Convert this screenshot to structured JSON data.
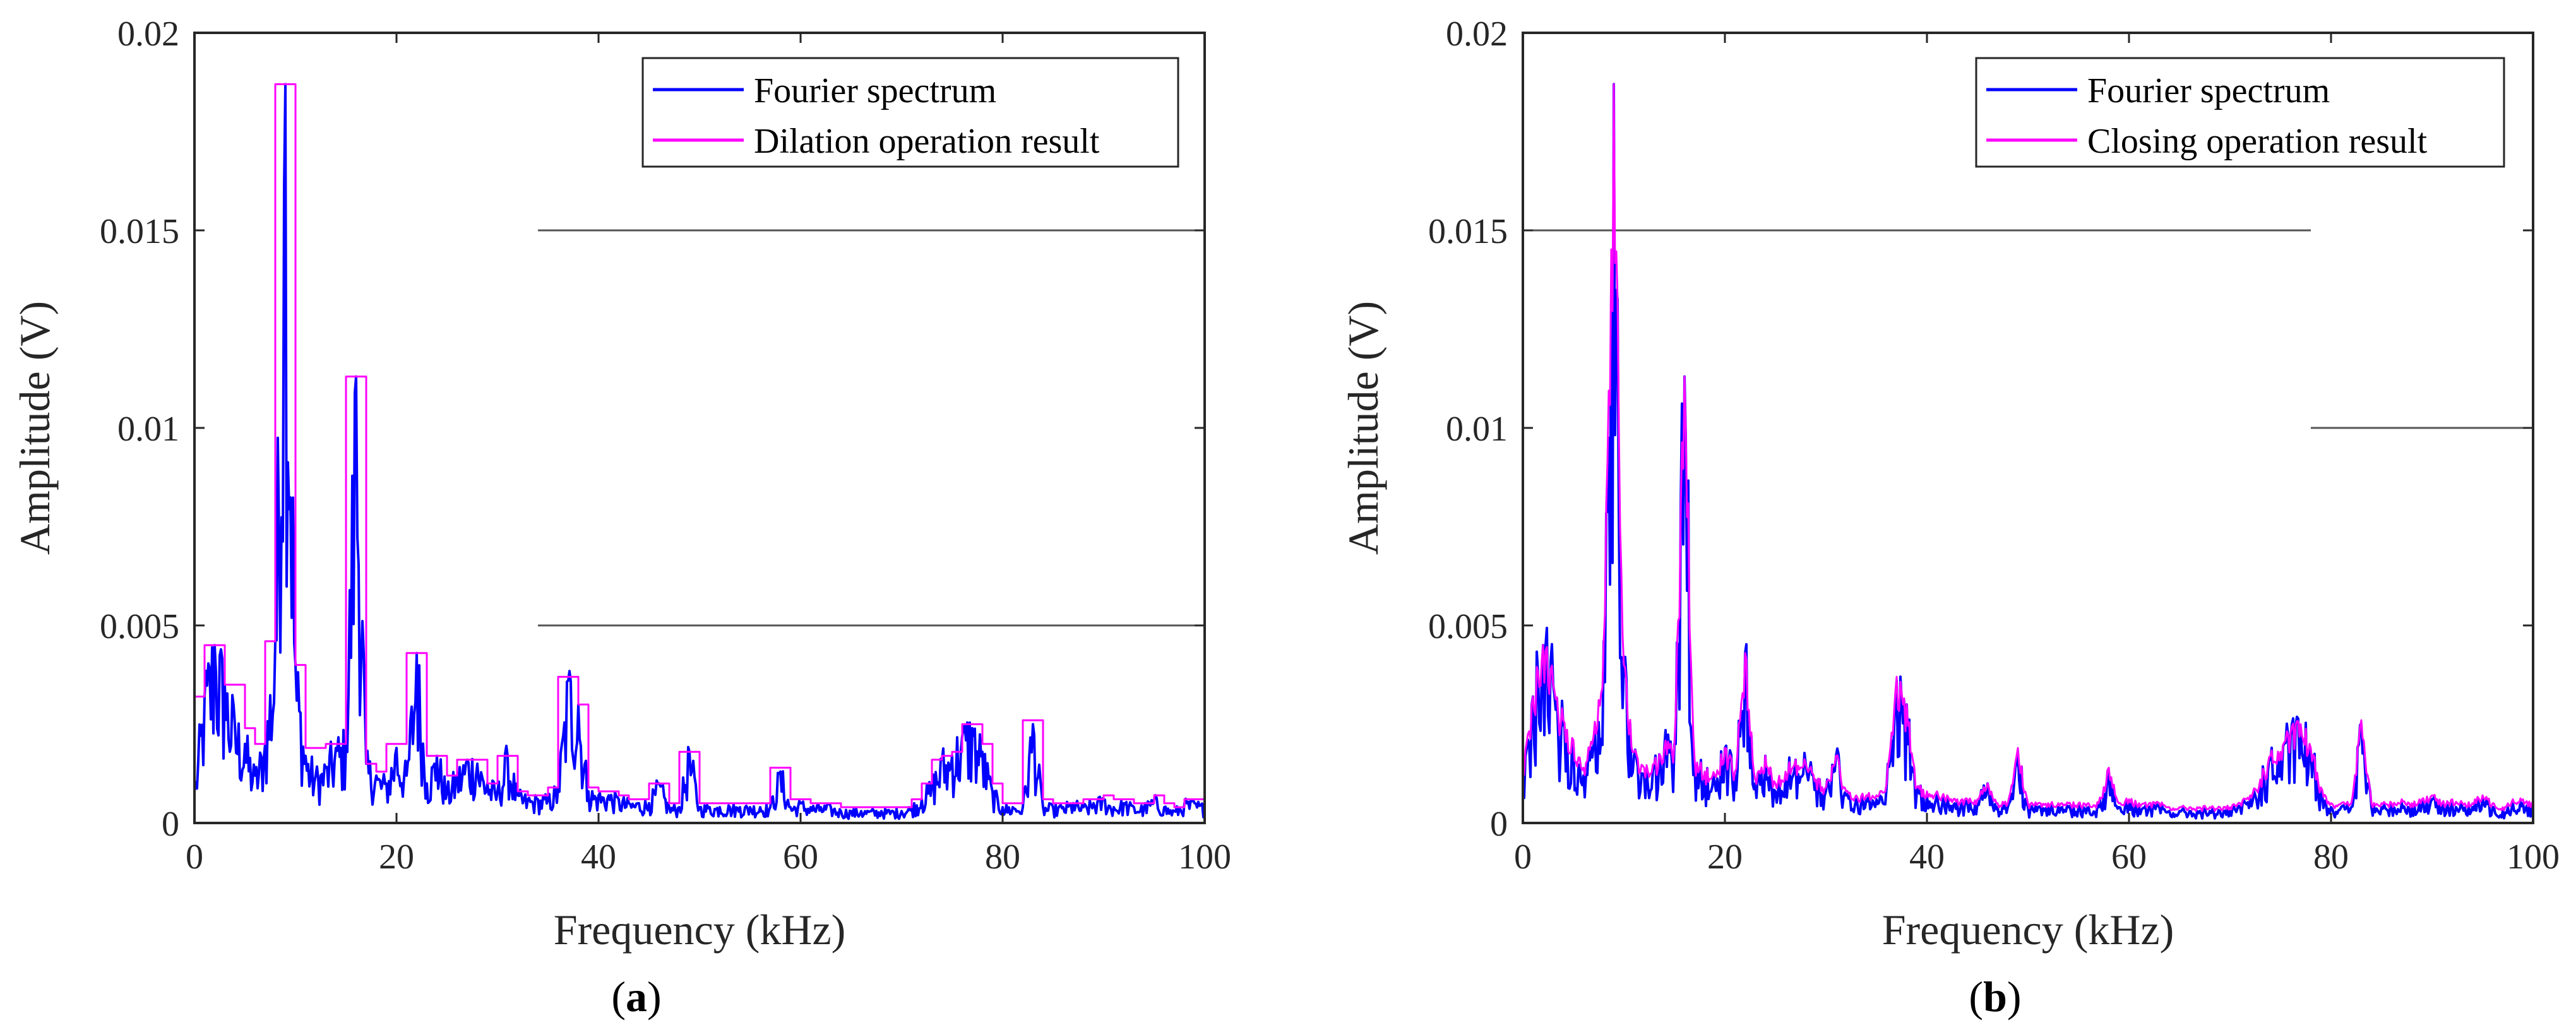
{
  "chart_data": [
    {
      "type": "line",
      "panel_label": "a",
      "title": "",
      "xlabel": "Frequency (kHz)",
      "ylabel": "Amplitude (V)",
      "xlim": [
        0,
        100
      ],
      "ylim": [
        0,
        0.02
      ],
      "xticks": [
        0,
        20,
        40,
        60,
        80,
        100
      ],
      "xtick_labels": [
        "0",
        "20",
        "40",
        "60",
        "80",
        "100"
      ],
      "yticks": [
        0,
        0.005,
        0.01,
        0.015,
        0.02
      ],
      "ytick_labels": [
        "0",
        "0.005",
        "0.01",
        "0.015",
        "0.02"
      ],
      "legend_position": "top-right",
      "reference_lines": [
        {
          "y": 0.015,
          "x_start": 34,
          "x_end": 100
        },
        {
          "y": 0.005,
          "x_start": 34,
          "x_end": 100
        }
      ],
      "series": [
        {
          "name": "Fourier spectrum",
          "color": "#0000ff",
          "style": "noisy-line",
          "x": [
            0,
            1,
            2,
            3,
            4,
            5,
            6,
            7,
            8,
            9,
            10,
            11,
            12,
            13,
            14,
            15,
            16,
            17,
            18,
            19,
            20,
            21,
            22,
            23,
            24,
            25,
            26,
            27,
            28,
            29,
            30,
            31,
            32,
            33,
            34,
            35,
            36,
            37,
            38,
            39,
            40,
            41,
            42,
            43,
            44,
            45,
            46,
            47,
            48,
            49,
            50,
            51,
            52,
            53,
            54,
            55,
            56,
            57,
            58,
            59,
            60,
            61,
            62,
            63,
            64,
            65,
            66,
            67,
            68,
            69,
            70,
            71,
            72,
            73,
            74,
            75,
            76,
            77,
            78,
            79,
            80,
            81,
            82,
            83,
            84,
            85,
            86,
            87,
            88,
            89,
            90,
            91,
            92,
            93,
            94,
            95,
            96,
            97,
            98,
            99,
            100
          ],
          "values": [
            0.0008,
            0.0032,
            0.0045,
            0.0035,
            0.0025,
            0.002,
            0.0012,
            0.002,
            0.0046,
            0.0187,
            0.004,
            0.0017,
            0.0012,
            0.0014,
            0.0019,
            0.002,
            0.0113,
            0.0015,
            0.0012,
            0.001,
            0.0019,
            0.0012,
            0.0043,
            0.001,
            0.0017,
            0.0008,
            0.0012,
            0.0016,
            0.0015,
            0.001,
            0.0008,
            0.0017,
            0.0007,
            0.0006,
            0.0006,
            0.0006,
            0.0009,
            0.0036,
            0.003,
            0.0008,
            0.0007,
            0.0007,
            0.0006,
            0.0005,
            0.0005,
            0.0005,
            0.001,
            0.0004,
            0.0004,
            0.0018,
            0.0004,
            0.0004,
            0.0004,
            0.0004,
            0.0004,
            0.0004,
            0.0004,
            0.0004,
            0.0013,
            0.0004,
            0.0005,
            0.0004,
            0.0004,
            0.0004,
            0.0003,
            0.0003,
            0.0003,
            0.0003,
            0.0003,
            0.0003,
            0.0003,
            0.0004,
            0.0006,
            0.001,
            0.0016,
            0.0017,
            0.0022,
            0.0024,
            0.0018,
            0.0008,
            0.0004,
            0.0004,
            0.0004,
            0.0025,
            0.0004,
            0.0004,
            0.0004,
            0.0005,
            0.0004,
            0.0005,
            0.0006,
            0.0004,
            0.0005,
            0.0004,
            0.0004,
            0.0006,
            0.0004,
            0.0003,
            0.0005,
            0.0005,
            0.0004
          ]
        },
        {
          "name": "Dilation operation result",
          "color": "#ff00ff",
          "style": "step-envelope",
          "x": [
            0,
            1,
            2,
            3,
            4,
            5,
            6,
            7,
            8,
            9,
            10,
            11,
            12,
            13,
            14,
            15,
            16,
            17,
            18,
            19,
            20,
            21,
            22,
            23,
            24,
            25,
            26,
            27,
            28,
            29,
            30,
            31,
            32,
            33,
            34,
            35,
            36,
            37,
            38,
            39,
            40,
            41,
            42,
            43,
            44,
            45,
            46,
            47,
            48,
            49,
            50,
            51,
            52,
            53,
            54,
            55,
            56,
            57,
            58,
            59,
            60,
            61,
            62,
            63,
            64,
            65,
            66,
            67,
            68,
            69,
            70,
            71,
            72,
            73,
            74,
            75,
            76,
            77,
            78,
            79,
            80,
            81,
            82,
            83,
            84,
            85,
            86,
            87,
            88,
            89,
            90,
            91,
            92,
            93,
            94,
            95,
            96,
            97,
            98,
            99,
            100
          ],
          "values": [
            0.0032,
            0.0045,
            0.0045,
            0.0035,
            0.0035,
            0.0024,
            0.002,
            0.0046,
            0.0187,
            0.0187,
            0.004,
            0.0019,
            0.0019,
            0.002,
            0.002,
            0.0113,
            0.0113,
            0.0015,
            0.0013,
            0.002,
            0.002,
            0.0043,
            0.0043,
            0.0017,
            0.0017,
            0.0012,
            0.0016,
            0.0016,
            0.0016,
            0.001,
            0.0017,
            0.0017,
            0.0008,
            0.0007,
            0.0007,
            0.0009,
            0.0037,
            0.0037,
            0.003,
            0.0009,
            0.0008,
            0.0008,
            0.0007,
            0.0006,
            0.0006,
            0.001,
            0.001,
            0.0005,
            0.0018,
            0.0018,
            0.0005,
            0.0005,
            0.0005,
            0.0005,
            0.0005,
            0.0005,
            0.0005,
            0.0014,
            0.0014,
            0.0006,
            0.0006,
            0.0005,
            0.0005,
            0.0005,
            0.0004,
            0.0004,
            0.0004,
            0.0004,
            0.0004,
            0.0004,
            0.0004,
            0.0006,
            0.001,
            0.0016,
            0.0017,
            0.0018,
            0.0025,
            0.0025,
            0.002,
            0.001,
            0.0005,
            0.0005,
            0.0026,
            0.0026,
            0.0006,
            0.0005,
            0.0005,
            0.0005,
            0.0006,
            0.0006,
            0.0007,
            0.0006,
            0.0006,
            0.0005,
            0.0005,
            0.0007,
            0.0005,
            0.0004,
            0.0006,
            0.0006,
            0.0005
          ]
        }
      ]
    },
    {
      "type": "line",
      "panel_label": "b",
      "title": "",
      "xlabel": "Frequency (kHz)",
      "ylabel": "Amplitude (V)",
      "xlim": [
        0,
        100
      ],
      "ylim": [
        0,
        0.02
      ],
      "xticks": [
        0,
        20,
        40,
        60,
        80,
        100
      ],
      "xtick_labels": [
        "0",
        "20",
        "40",
        "60",
        "80",
        "100"
      ],
      "yticks": [
        0,
        0.005,
        0.01,
        0.015,
        0.02
      ],
      "ytick_labels": [
        "0",
        "0.005",
        "0.01",
        "0.015",
        "0.02"
      ],
      "legend_position": "top-right",
      "reference_lines": [
        {
          "y": 0.015,
          "x_start": 0,
          "x_end": 78
        },
        {
          "y": 0.01,
          "x_start": 78,
          "x_end": 100
        }
      ],
      "series": [
        {
          "name": "Fourier spectrum",
          "color": "#0000ff",
          "style": "noisy-line",
          "x": [
            0,
            1,
            2,
            3,
            4,
            5,
            6,
            7,
            8,
            9,
            10,
            11,
            12,
            13,
            14,
            15,
            16,
            17,
            18,
            19,
            20,
            21,
            22,
            23,
            24,
            25,
            26,
            27,
            28,
            29,
            30,
            31,
            32,
            33,
            34,
            35,
            36,
            37,
            38,
            39,
            40,
            41,
            42,
            43,
            44,
            45,
            46,
            47,
            48,
            49,
            50,
            51,
            52,
            53,
            54,
            55,
            56,
            57,
            58,
            59,
            60,
            61,
            62,
            63,
            64,
            65,
            66,
            67,
            68,
            69,
            70,
            71,
            72,
            73,
            74,
            75,
            76,
            77,
            78,
            79,
            80,
            81,
            82,
            83,
            84,
            85,
            86,
            87,
            88,
            89,
            90,
            91,
            92,
            93,
            94,
            95,
            96,
            97,
            98,
            99,
            100
          ],
          "values": [
            0.0008,
            0.0032,
            0.0045,
            0.0035,
            0.0025,
            0.002,
            0.0012,
            0.002,
            0.0046,
            0.0187,
            0.004,
            0.0017,
            0.0012,
            0.0014,
            0.0019,
            0.002,
            0.0113,
            0.0015,
            0.0012,
            0.001,
            0.0019,
            0.0012,
            0.0043,
            0.001,
            0.0017,
            0.0008,
            0.0012,
            0.0016,
            0.0015,
            0.001,
            0.0008,
            0.0017,
            0.0007,
            0.0006,
            0.0006,
            0.0006,
            0.0009,
            0.0036,
            0.003,
            0.0008,
            0.0007,
            0.0007,
            0.0006,
            0.0005,
            0.0005,
            0.0005,
            0.001,
            0.0004,
            0.0004,
            0.0018,
            0.0004,
            0.0004,
            0.0004,
            0.0004,
            0.0004,
            0.0004,
            0.0004,
            0.0004,
            0.0013,
            0.0004,
            0.0005,
            0.0004,
            0.0004,
            0.0004,
            0.0003,
            0.0003,
            0.0003,
            0.0003,
            0.0003,
            0.0003,
            0.0003,
            0.0004,
            0.0006,
            0.001,
            0.0016,
            0.0017,
            0.0022,
            0.0024,
            0.0018,
            0.0008,
            0.0004,
            0.0004,
            0.0004,
            0.0025,
            0.0004,
            0.0004,
            0.0004,
            0.0005,
            0.0004,
            0.0005,
            0.0006,
            0.0004,
            0.0005,
            0.0004,
            0.0004,
            0.0006,
            0.0004,
            0.0003,
            0.0005,
            0.0005,
            0.0004
          ]
        },
        {
          "name": "Closing operation result",
          "color": "#ff00ff",
          "style": "smooth-envelope",
          "x": [
            0,
            1,
            2,
            3,
            4,
            5,
            6,
            7,
            8,
            9,
            10,
            11,
            12,
            13,
            14,
            15,
            16,
            17,
            18,
            19,
            20,
            21,
            22,
            23,
            24,
            25,
            26,
            27,
            28,
            29,
            30,
            31,
            32,
            33,
            34,
            35,
            36,
            37,
            38,
            39,
            40,
            41,
            42,
            43,
            44,
            45,
            46,
            47,
            48,
            49,
            50,
            51,
            52,
            53,
            54,
            55,
            56,
            57,
            58,
            59,
            60,
            61,
            62,
            63,
            64,
            65,
            66,
            67,
            68,
            69,
            70,
            71,
            72,
            73,
            74,
            75,
            76,
            77,
            78,
            79,
            80,
            81,
            82,
            83,
            84,
            85,
            86,
            87,
            88,
            89,
            90,
            91,
            92,
            93,
            94,
            95,
            96,
            97,
            98,
            99,
            100
          ],
          "values": [
            0.0012,
            0.0032,
            0.0045,
            0.0035,
            0.0026,
            0.0021,
            0.0014,
            0.0022,
            0.0046,
            0.0187,
            0.004,
            0.0018,
            0.0014,
            0.0015,
            0.0019,
            0.002,
            0.0113,
            0.0016,
            0.0013,
            0.0012,
            0.0019,
            0.0013,
            0.0043,
            0.0011,
            0.0017,
            0.001,
            0.0013,
            0.0016,
            0.0015,
            0.0011,
            0.0009,
            0.0017,
            0.0008,
            0.0007,
            0.0007,
            0.0007,
            0.001,
            0.0037,
            0.003,
            0.0009,
            0.0008,
            0.0008,
            0.0007,
            0.0006,
            0.0006,
            0.0006,
            0.001,
            0.0005,
            0.0005,
            0.0019,
            0.0005,
            0.0005,
            0.0005,
            0.0005,
            0.0005,
            0.0005,
            0.0005,
            0.0005,
            0.0014,
            0.0005,
            0.0006,
            0.0005,
            0.0005,
            0.0005,
            0.0004,
            0.0004,
            0.0004,
            0.0004,
            0.0004,
            0.0004,
            0.0004,
            0.0005,
            0.0007,
            0.0011,
            0.0017,
            0.0018,
            0.0023,
            0.0025,
            0.0019,
            0.0009,
            0.0005,
            0.0005,
            0.0005,
            0.0026,
            0.0005,
            0.0005,
            0.0005,
            0.0006,
            0.0005,
            0.0006,
            0.0007,
            0.0005,
            0.0006,
            0.0005,
            0.0005,
            0.0007,
            0.0005,
            0.0004,
            0.0006,
            0.0006,
            0.0005
          ]
        }
      ]
    }
  ]
}
